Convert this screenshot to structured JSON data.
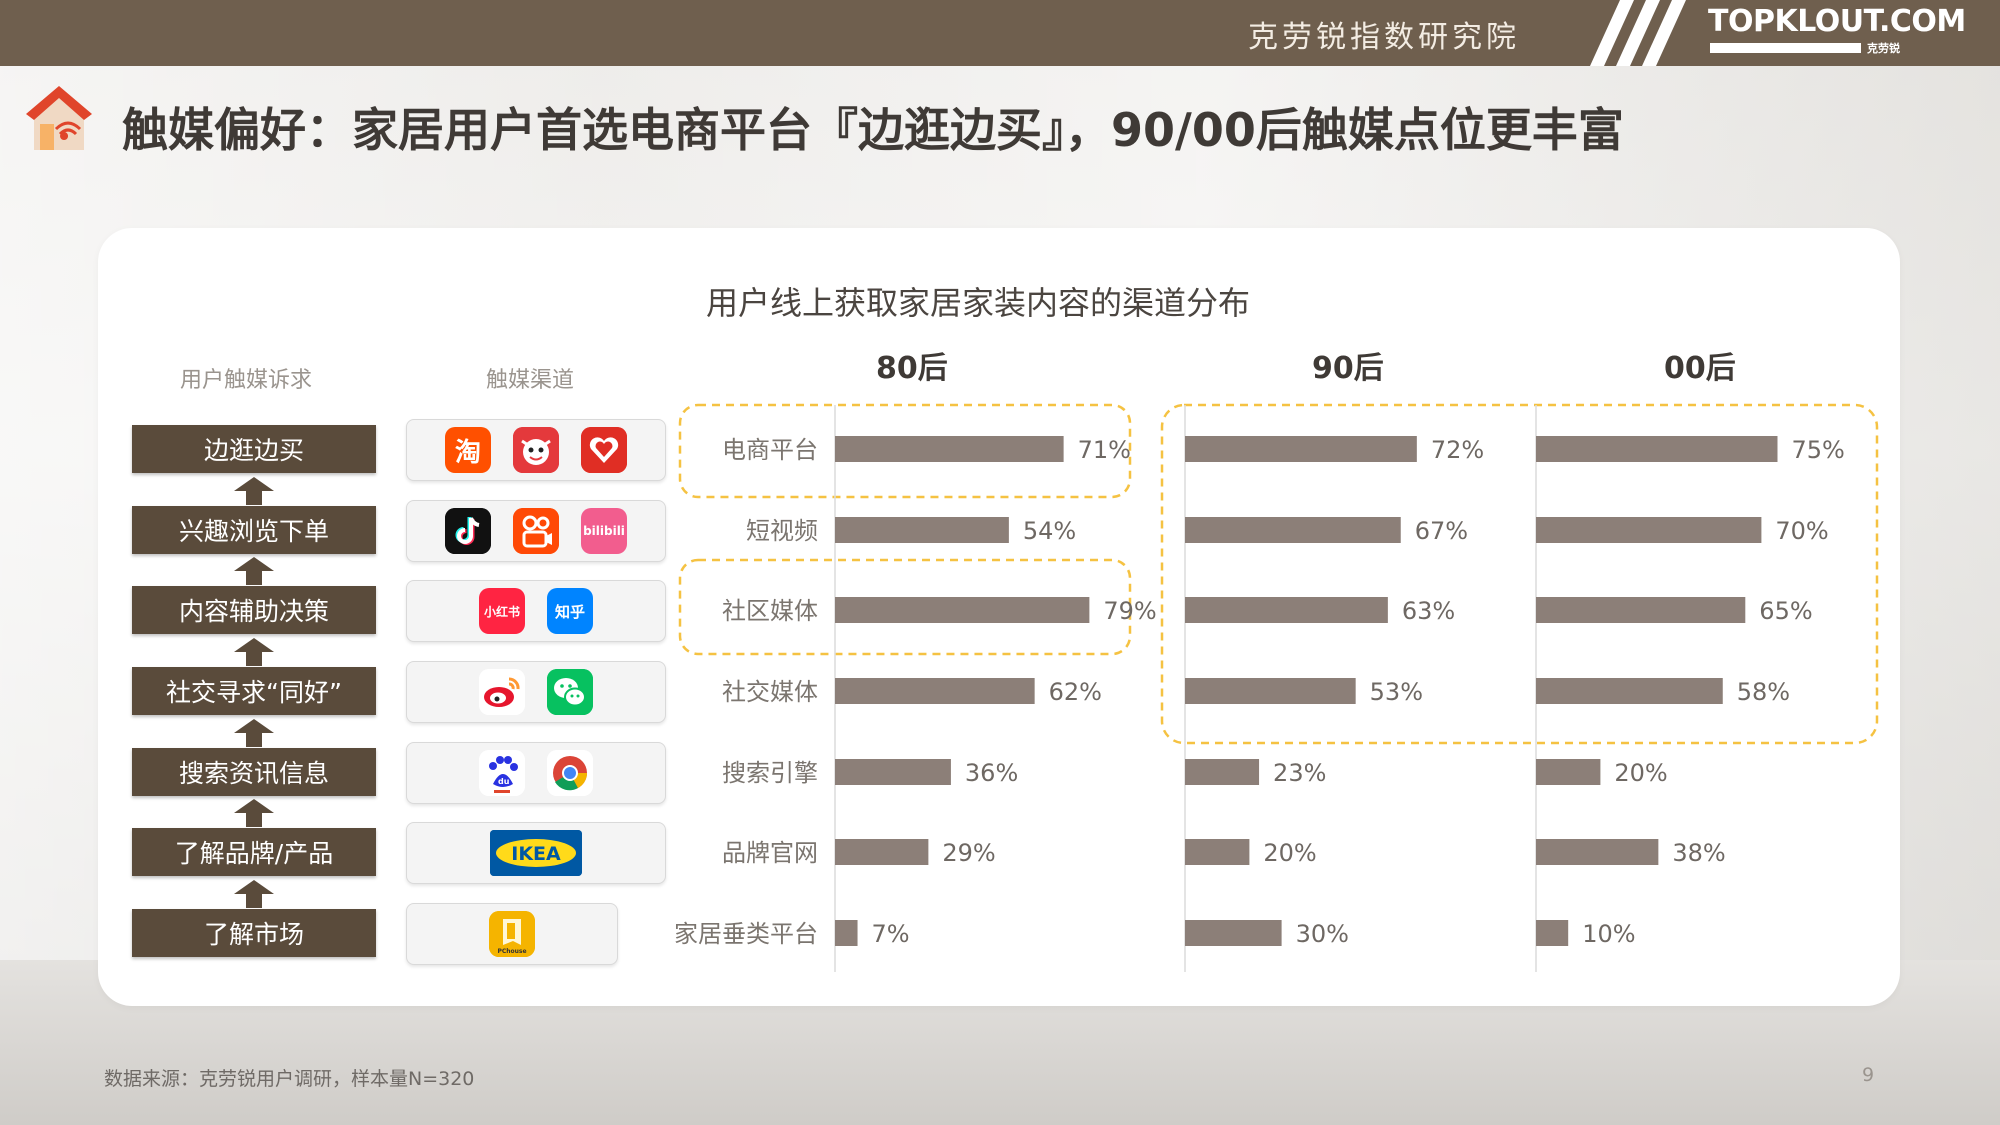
{
  "header": {
    "brand_cn": "克劳锐指数研究院",
    "logo_main": "TOPKLOUT.COM",
    "logo_sub": "克劳锐"
  },
  "page": {
    "title": "触媒偏好：家居用户首选电商平台『边逛边买』，90/00后触媒点位更丰富",
    "source": "数据来源：克劳锐用户调研，样本量N=320",
    "page_number": "9"
  },
  "columns": {
    "needs_header": "用户触媒诉求",
    "channels_header": "触媒渠道"
  },
  "needs": [
    "边逛边买",
    "兴趣浏览下单",
    "内容辅助决策",
    "社交寻求“同好”",
    "搜索资讯信息",
    "了解品牌/产品",
    "了解市场"
  ],
  "channel_icons": [
    [
      {
        "name": "taobao-icon",
        "text": "淘",
        "bg": "#ff5000"
      },
      {
        "name": "jd-icon",
        "text": "",
        "bg": "#e4393c"
      },
      {
        "name": "pinduoduo-icon",
        "text": "",
        "bg": "#e02e24"
      }
    ],
    [
      {
        "name": "douyin-icon",
        "text": "♪",
        "bg": "#111111"
      },
      {
        "name": "kuaishou-icon",
        "text": "",
        "bg": "#ff4906"
      },
      {
        "name": "bilibili-icon",
        "text": "bilibili",
        "bg": "#f25d8e"
      }
    ],
    [
      {
        "name": "xiaohongshu-icon",
        "text": "小红书",
        "bg": "#ff2442"
      },
      {
        "name": "zhihu-icon",
        "text": "知乎",
        "bg": "#0084ff"
      }
    ],
    [
      {
        "name": "weibo-icon",
        "text": "",
        "bg": "#ffffff"
      },
      {
        "name": "wechat-icon",
        "text": "",
        "bg": "#07c160"
      }
    ],
    [
      {
        "name": "baidu-icon",
        "text": "du",
        "bg": "#ffffff"
      },
      {
        "name": "chrome-icon",
        "text": "",
        "bg": "#ffffff"
      }
    ],
    [
      {
        "name": "ikea-icon",
        "text": "IKEA",
        "bg": "#0058a3"
      }
    ],
    [
      {
        "name": "pchouse-icon",
        "text": "",
        "bg": "#f5b400"
      }
    ]
  ],
  "colors": {
    "bar": "#8c7f78",
    "highlight_border": "#f5c242",
    "need_box": "#5a4b3b",
    "header_bar": "#6f5f4e"
  },
  "chart_data": {
    "type": "bar",
    "orientation": "horizontal",
    "title": "用户线上获取家居家装内容的渠道分布",
    "categories": [
      "电商平台",
      "短视频",
      "社区媒体",
      "社交媒体",
      "搜索引擎",
      "品牌官网",
      "家居垂类平台"
    ],
    "series": [
      {
        "name": "80后",
        "values": [
          71,
          54,
          79,
          62,
          36,
          29,
          7
        ]
      },
      {
        "name": "90后",
        "values": [
          72,
          67,
          63,
          53,
          23,
          20,
          30
        ]
      },
      {
        "name": "00后",
        "values": [
          75,
          70,
          65,
          58,
          20,
          38,
          10
        ]
      }
    ],
    "unit": "%",
    "data_labels": true,
    "highlights": [
      {
        "series": "80后",
        "categories": [
          "电商平台"
        ]
      },
      {
        "series": "80后",
        "categories": [
          "社区媒体"
        ]
      },
      {
        "series": [
          "90后",
          "00后"
        ],
        "categories": [
          "电商平台",
          "短视频",
          "社区媒体",
          "社交媒体"
        ]
      }
    ]
  }
}
